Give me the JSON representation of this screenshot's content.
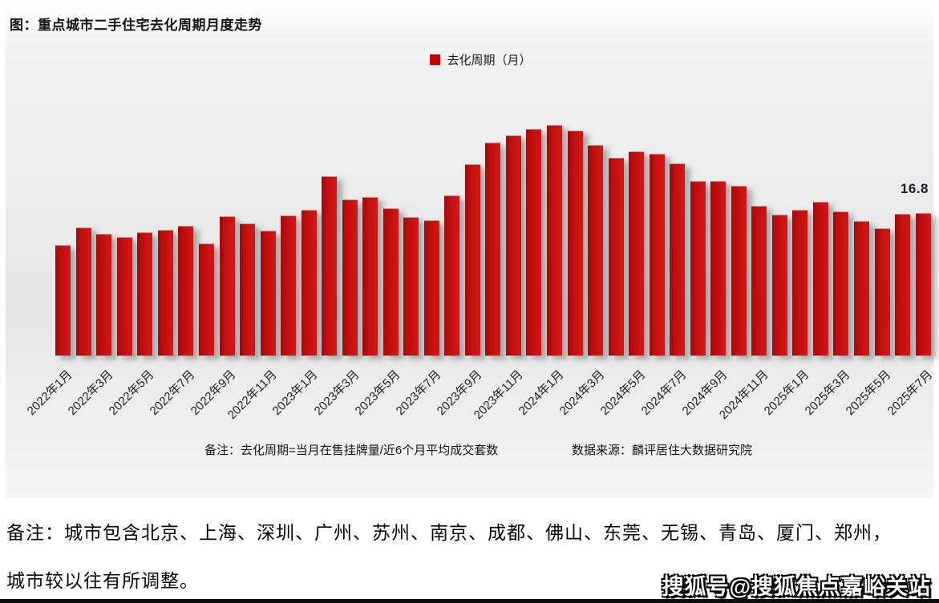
{
  "chart": {
    "title": "图：重点城市二手住宅去化周期月度走势",
    "legend_label": "去化周期（月）",
    "last_value_label": "16.8",
    "note_left": "备注：去化周期=当月在售挂牌量/近6个月平均成交套数",
    "note_right": "数据来源：麟评居住大数据研究院"
  },
  "chart_data": {
    "type": "bar",
    "title": "图：重点城市二手住宅去化周期月度走势",
    "series_name": "去化周期（月）",
    "bar_color": "#c01010",
    "legend_position": "top-center",
    "grid": false,
    "ylim": [
      0,
      28
    ],
    "y_axis_visible": false,
    "categories": [
      "2022年1月",
      "2022年2月",
      "2022年3月",
      "2022年4月",
      "2022年5月",
      "2022年6月",
      "2022年7月",
      "2022年8月",
      "2022年9月",
      "2022年10月",
      "2022年11月",
      "2022年12月",
      "2023年1月",
      "2023年2月",
      "2023年3月",
      "2023年4月",
      "2023年5月",
      "2023年6月",
      "2023年7月",
      "2023年8月",
      "2023年9月",
      "2023年10月",
      "2023年11月",
      "2023年12月",
      "2024年1月",
      "2024年2月",
      "2024年3月",
      "2024年4月",
      "2024年5月",
      "2024年6月",
      "2024年7月",
      "2024年8月",
      "2024年9月",
      "2024年10月",
      "2024年11月",
      "2024年12月",
      "2025年1月",
      "2025年2月",
      "2025年3月",
      "2025年4月",
      "2025年5月",
      "2025年6月",
      "2025年7月"
    ],
    "values": [
      13.0,
      15.1,
      14.3,
      13.9,
      14.5,
      14.8,
      15.3,
      13.2,
      16.4,
      15.6,
      14.7,
      16.5,
      17.2,
      21.2,
      18.4,
      18.7,
      17.4,
      16.3,
      15.9,
      18.9,
      22.6,
      25.1,
      26.0,
      26.8,
      27.2,
      26.6,
      24.9,
      23.3,
      24.1,
      23.8,
      22.7,
      20.6,
      20.6,
      20.0,
      17.6,
      16.6,
      17.2,
      18.1,
      17.0,
      15.8,
      15.0,
      16.7,
      16.8
    ],
    "x_tick_labels": [
      "2022年1月",
      "2022年3月",
      "2022年5月",
      "2022年7月",
      "2022年9月",
      "2022年11月",
      "2023年1月",
      "2023年3月",
      "2023年5月",
      "2023年7月",
      "2023年9月",
      "2023年11月",
      "2024年1月",
      "2024年3月",
      "2024年5月",
      "2024年7月",
      "2024年9月",
      "2024年11月",
      "2025年1月",
      "2025年3月",
      "2025年5月",
      "2025年7月"
    ],
    "data_labels": {
      "2025年7月": "16.8"
    }
  },
  "footer": {
    "line1": "备注：城市包含北京、上海、深圳、广州、苏州、南京、成都、佛山、东莞、无锡、青岛、厦门、郑州，",
    "line2": "城市较以往有所调整。",
    "watermark": "搜狐号@搜狐焦点嘉峪关站"
  }
}
